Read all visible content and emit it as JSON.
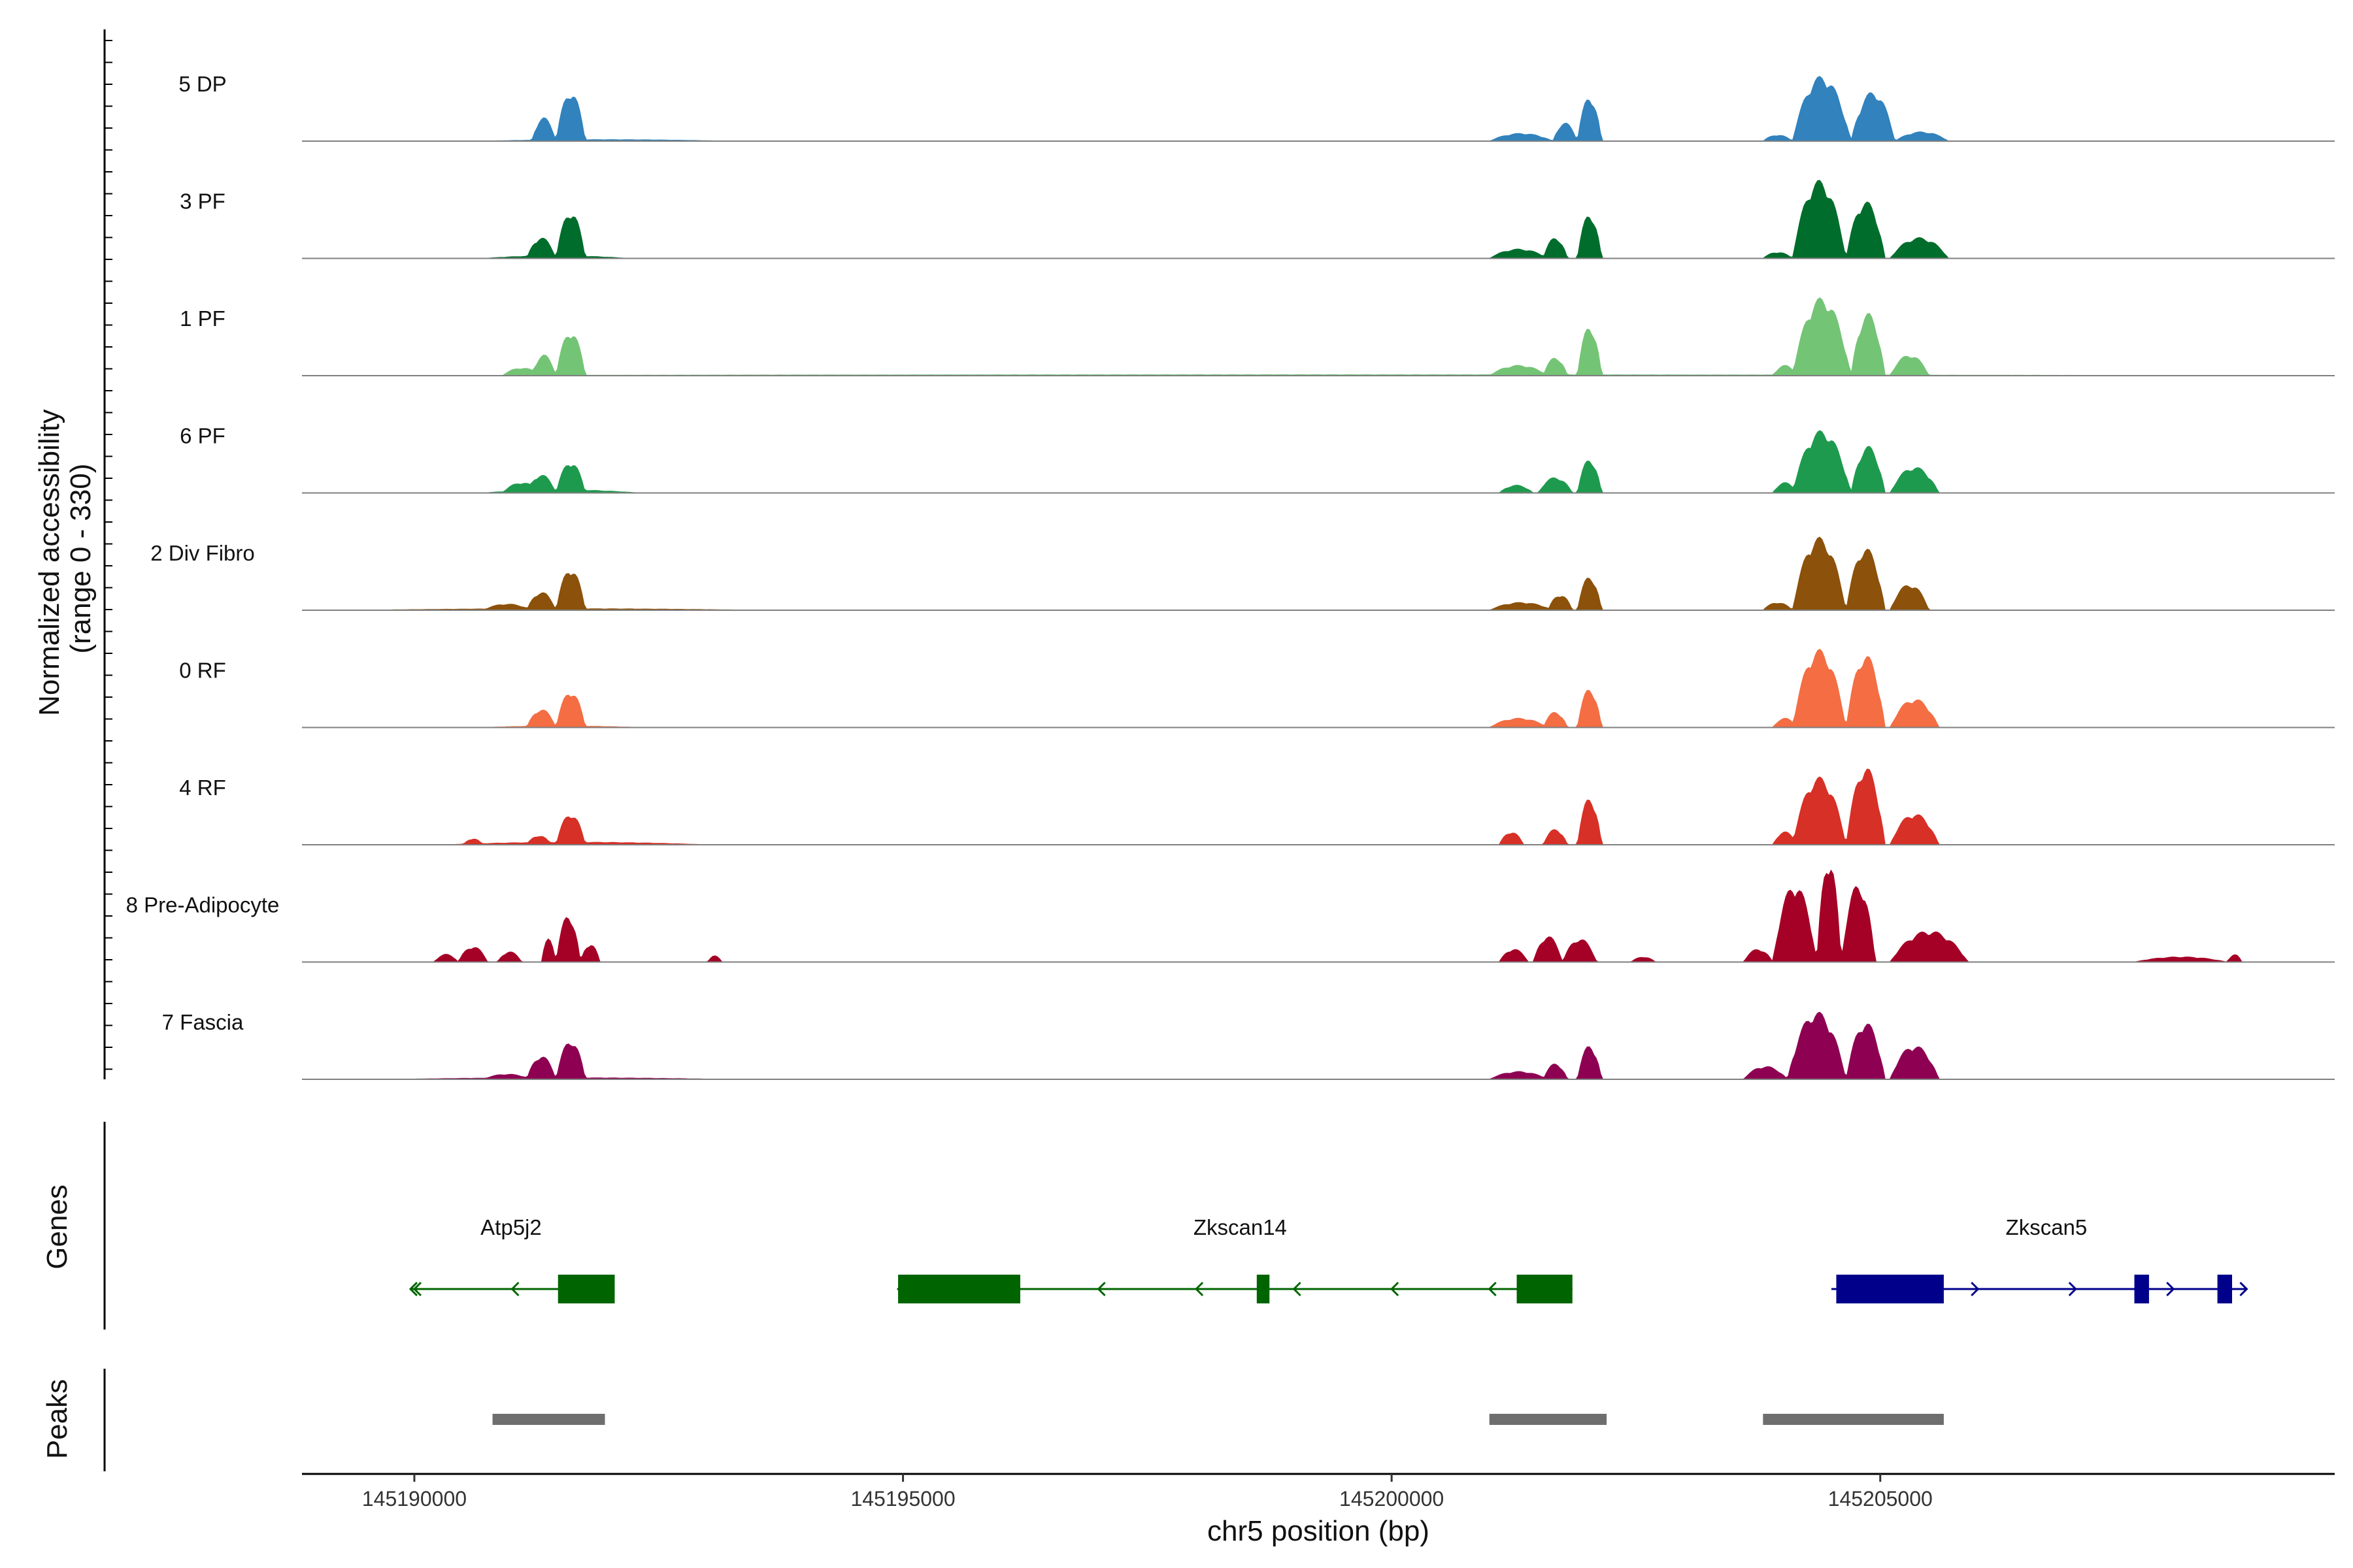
{
  "chart_data": {
    "type": "area",
    "title": "",
    "ylabel": "Normalized accessibility\n(range 0 - 330)",
    "ylabel_lines": [
      "Normalized accessibility",
      "(range 0 - 330)"
    ],
    "xlabel": "chr5 position (bp)",
    "chromosome": "chr5",
    "xlim": [
      145188850,
      145209650
    ],
    "ylim": [
      0,
      330
    ],
    "x_ticks": [
      145190000,
      145195000,
      145200000,
      145205000
    ],
    "x_tick_labels": [
      "145190000",
      "145195000",
      "145200000",
      "145205000"
    ],
    "series": [
      {
        "name": "5 DP",
        "color": "#3182BD",
        "peaks": [
          [
            145190700,
            145193200,
            3
          ],
          [
            145191200,
            145191450,
            45
          ],
          [
            145191450,
            145191750,
            95
          ],
          [
            145201000,
            145201650,
            15
          ],
          [
            145201650,
            145201900,
            35
          ],
          [
            145201900,
            145202150,
            85
          ],
          [
            145203800,
            145204100,
            12
          ],
          [
            145204100,
            145204700,
            125
          ],
          [
            145204700,
            145205150,
            95
          ],
          [
            145205150,
            145205700,
            18
          ]
        ]
      },
      {
        "name": "3 PF",
        "color": "#006D2C",
        "peaks": [
          [
            145190700,
            145192200,
            5
          ],
          [
            145191150,
            145191450,
            40
          ],
          [
            145191450,
            145191750,
            90
          ],
          [
            145201000,
            145201600,
            18
          ],
          [
            145201550,
            145201800,
            40
          ],
          [
            145201900,
            145202150,
            85
          ],
          [
            145203800,
            145204100,
            12
          ],
          [
            145204100,
            145204650,
            150
          ],
          [
            145204650,
            145205050,
            110
          ],
          [
            145205100,
            145205700,
            40
          ]
        ]
      },
      {
        "name": "1 PF",
        "color": "#74C476",
        "peaks": [
          [
            145189000,
            145209000,
            2
          ],
          [
            145190900,
            145191300,
            15
          ],
          [
            145191200,
            145191450,
            40
          ],
          [
            145191450,
            145191750,
            85
          ],
          [
            145201000,
            145201600,
            20
          ],
          [
            145201550,
            145201800,
            35
          ],
          [
            145201900,
            145202150,
            95
          ],
          [
            145203900,
            145204150,
            20
          ],
          [
            145204100,
            145204700,
            150
          ],
          [
            145204700,
            145205050,
            120
          ],
          [
            145205100,
            145205500,
            40
          ]
        ]
      },
      {
        "name": "6 PF",
        "color": "#1E9A4E",
        "peaks": [
          [
            145190700,
            145192300,
            6
          ],
          [
            145190900,
            145191300,
            20
          ],
          [
            145191150,
            145191450,
            35
          ],
          [
            145191450,
            145191750,
            60
          ],
          [
            145201100,
            145201450,
            15
          ],
          [
            145201500,
            145201850,
            30
          ],
          [
            145201900,
            145202150,
            65
          ],
          [
            145203900,
            145204150,
            20
          ],
          [
            145204100,
            145204700,
            120
          ],
          [
            145204700,
            145205050,
            90
          ],
          [
            145205100,
            145205600,
            50
          ]
        ]
      },
      {
        "name": "2 Div Fibro",
        "color": "#8C510A",
        "peaks": [
          [
            145189500,
            145193500,
            3
          ],
          [
            145190700,
            145191200,
            12
          ],
          [
            145191150,
            145191450,
            35
          ],
          [
            145191450,
            145191750,
            80
          ],
          [
            145201000,
            145201650,
            15
          ],
          [
            145201600,
            145201850,
            30
          ],
          [
            145201900,
            145202150,
            65
          ],
          [
            145203800,
            145204100,
            15
          ],
          [
            145204100,
            145204650,
            140
          ],
          [
            145204650,
            145205050,
            120
          ],
          [
            145205100,
            145205500,
            50
          ]
        ]
      },
      {
        "name": "0 RF",
        "color": "#F46D43",
        "peaks": [
          [
            145190700,
            145192300,
            3
          ],
          [
            145191150,
            145191450,
            35
          ],
          [
            145191450,
            145191750,
            70
          ],
          [
            145201000,
            145201600,
            18
          ],
          [
            145201550,
            145201800,
            30
          ],
          [
            145201900,
            145202150,
            75
          ],
          [
            145203900,
            145204150,
            18
          ],
          [
            145204100,
            145204650,
            150
          ],
          [
            145204650,
            145205050,
            140
          ],
          [
            145205100,
            145205600,
            55
          ]
        ]
      },
      {
        "name": "4 RF",
        "color": "#D73027",
        "peaks": [
          [
            145190300,
            145193000,
            5
          ],
          [
            145190500,
            145190700,
            12
          ],
          [
            145191150,
            145191400,
            18
          ],
          [
            145191450,
            145191750,
            60
          ],
          [
            145201100,
            145201350,
            25
          ],
          [
            145201550,
            145201800,
            30
          ],
          [
            145201900,
            145202150,
            90
          ],
          [
            145203900,
            145204150,
            25
          ],
          [
            145204100,
            145204650,
            130
          ],
          [
            145204650,
            145205050,
            150
          ],
          [
            145205100,
            145205600,
            60
          ]
        ]
      },
      {
        "name": "8 Pre-Adipocyte",
        "color": "#A50026",
        "peaks": [
          [
            145190200,
            145190450,
            15
          ],
          [
            145190450,
            145190750,
            30
          ],
          [
            145190850,
            145191100,
            20
          ],
          [
            145191300,
            145191450,
            45
          ],
          [
            145191450,
            145191700,
            90
          ],
          [
            145191700,
            145191900,
            35
          ],
          [
            145193000,
            145193150,
            12
          ],
          [
            145201100,
            145201400,
            25
          ],
          [
            145201450,
            145201750,
            50
          ],
          [
            145201750,
            145202100,
            45
          ],
          [
            145202450,
            145202700,
            10
          ],
          [
            145203600,
            145203900,
            25
          ],
          [
            145203900,
            145204350,
            150
          ],
          [
            145204350,
            145204600,
            200
          ],
          [
            145204600,
            145204950,
            150
          ],
          [
            145205100,
            145205900,
            60
          ],
          [
            145207600,
            145208550,
            10
          ],
          [
            145208550,
            145208700,
            15
          ]
        ]
      },
      {
        "name": "7 Fascia",
        "color": "#8E0152",
        "peaks": [
          [
            145189800,
            145193200,
            3
          ],
          [
            145190700,
            145191200,
            10
          ],
          [
            145191150,
            145191450,
            45
          ],
          [
            145191450,
            145191750,
            75
          ],
          [
            145201000,
            145201600,
            15
          ],
          [
            145201550,
            145201800,
            30
          ],
          [
            145201900,
            145202150,
            65
          ],
          [
            145203600,
            145204050,
            25
          ],
          [
            145204050,
            145204650,
            130
          ],
          [
            145204650,
            145205050,
            110
          ],
          [
            145205100,
            145205600,
            65
          ]
        ]
      }
    ],
    "genes": [
      {
        "name": "Atp5j2",
        "strand": "-",
        "color": "#006400",
        "start": 145189960,
        "end": 145192050,
        "exons": [
          [
            145191470,
            145192050
          ]
        ],
        "label_x": 145190990
      },
      {
        "name": "Zkscan14",
        "strand": "-",
        "color": "#006400",
        "start": 145194950,
        "end": 145201850,
        "exons": [
          [
            145194950,
            145196200
          ],
          [
            145198620,
            145198750
          ],
          [
            145201280,
            145201850
          ]
        ],
        "label_x": 145198450
      },
      {
        "name": "Zkscan5",
        "strand": "+",
        "color": "#00008B",
        "start": 145204500,
        "end": 145208750,
        "exons": [
          [
            145204550,
            145205650
          ],
          [
            145207600,
            145207750
          ],
          [
            145208450,
            145208600
          ]
        ],
        "label_x": 145206700
      }
    ],
    "peaks_track": [
      [
        145190800,
        145191950
      ],
      [
        145201000,
        145202200
      ],
      [
        145203800,
        145205650
      ]
    ],
    "panel_titles": {
      "genes": "Genes",
      "peaks": "Peaks"
    }
  }
}
